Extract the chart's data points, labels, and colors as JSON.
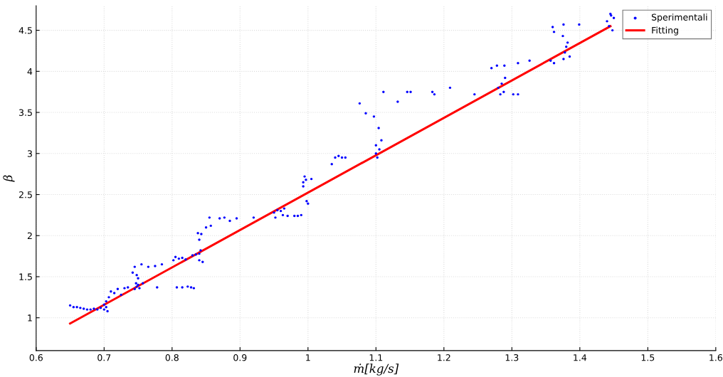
{
  "chart_data": {
    "type": "scatter",
    "xlabel": "ṁ[kg/s]",
    "ylabel": "β",
    "xlim": [
      0.6,
      1.6
    ],
    "xticks": [
      0.6,
      0.7,
      0.8,
      0.9,
      1,
      1.1,
      1.2,
      1.3,
      1.4,
      1.5,
      1.6
    ],
    "ylim": [
      0.6,
      4.8
    ],
    "yticks": [
      1,
      1.5,
      2,
      2.5,
      3,
      3.5,
      4,
      4.5
    ],
    "grid": true,
    "legend": "top right",
    "series": [
      {
        "name": "Sperimentali",
        "marker": "circle",
        "color": "#0000ff",
        "x": [
          0.65,
          0.655,
          0.66,
          0.665,
          0.67,
          0.675,
          0.68,
          0.685,
          0.69,
          0.695,
          0.7,
          0.703,
          0.705,
          0.7,
          0.703,
          0.707,
          0.71,
          0.715,
          0.72,
          0.725,
          0.73,
          0.735,
          0.745,
          0.748,
          0.75,
          0.752,
          0.747,
          0.75,
          0.742,
          0.745,
          0.755,
          0.748,
          0.757,
          0.765,
          0.775,
          0.785,
          0.778,
          0.802,
          0.805,
          0.81,
          0.815,
          0.82,
          0.83,
          0.835,
          0.84,
          0.842,
          0.84,
          0.845,
          0.807,
          0.815,
          0.823,
          0.828,
          0.832,
          0.84,
          0.838,
          0.843,
          0.85,
          0.855,
          0.857,
          0.87,
          0.877,
          0.885,
          0.895,
          0.92,
          0.95,
          0.955,
          0.96,
          0.963,
          0.952,
          0.965,
          0.97,
          0.98,
          0.985,
          0.99,
          0.993,
          0.995,
          0.993,
          0.997,
          1.005,
          0.998,
          1.0,
          1.035,
          1.04,
          1.045,
          1.05,
          1.055,
          1.076,
          1.085,
          1.097,
          1.104,
          1.108,
          1.1,
          1.102,
          1.105,
          1.1,
          1.111,
          1.132,
          1.146,
          1.151,
          1.183,
          1.186,
          1.209,
          1.245,
          1.28,
          1.285,
          1.29,
          1.283,
          1.288,
          1.278,
          1.27,
          1.289,
          1.309,
          1.326,
          1.302,
          1.309,
          1.357,
          1.36,
          1.362,
          1.376,
          1.378,
          1.38,
          1.385,
          1.375,
          1.382,
          1.399,
          1.362,
          1.376,
          1.44,
          1.443,
          1.446,
          1.448,
          1.45,
          1.445
        ],
        "values": [
          1.15,
          1.13,
          1.13,
          1.12,
          1.11,
          1.1,
          1.1,
          1.11,
          1.1,
          1.12,
          1.1,
          1.13,
          1.08,
          1.16,
          1.2,
          1.25,
          1.32,
          1.3,
          1.35,
          1.28,
          1.36,
          1.37,
          1.35,
          1.38,
          1.4,
          1.36,
          1.42,
          1.48,
          1.55,
          1.62,
          1.65,
          1.52,
          1.42,
          1.62,
          1.63,
          1.65,
          1.37,
          1.7,
          1.74,
          1.72,
          1.73,
          1.71,
          1.76,
          1.77,
          1.78,
          1.82,
          1.7,
          1.68,
          1.37,
          1.37,
          1.38,
          1.37,
          1.36,
          1.95,
          2.03,
          2.02,
          2.1,
          2.22,
          2.12,
          2.21,
          2.22,
          2.18,
          2.21,
          2.22,
          2.28,
          2.31,
          2.3,
          2.25,
          2.22,
          2.33,
          2.24,
          2.24,
          2.24,
          2.25,
          2.65,
          2.72,
          2.6,
          2.68,
          2.69,
          2.42,
          2.39,
          2.87,
          2.95,
          2.97,
          2.95,
          2.95,
          3.61,
          3.49,
          3.45,
          3.31,
          3.16,
          3.0,
          2.95,
          3.05,
          3.1,
          3.75,
          3.63,
          3.75,
          3.75,
          3.75,
          3.72,
          3.8,
          3.72,
          3.8,
          3.85,
          3.92,
          3.72,
          3.75,
          4.07,
          4.04,
          4.07,
          4.1,
          4.13,
          3.72,
          3.72,
          4.13,
          4.54,
          4.48,
          4.57,
          4.23,
          4.3,
          4.18,
          4.43,
          4.35,
          4.57,
          4.1,
          4.15,
          4.61,
          4.55,
          4.68,
          4.5,
          4.65,
          4.7
        ]
      },
      {
        "name": "Fitting",
        "type": "line",
        "color": "#ff0000",
        "x": [
          0.65,
          1.445
        ],
        "values": [
          0.93,
          4.55
        ]
      }
    ]
  }
}
